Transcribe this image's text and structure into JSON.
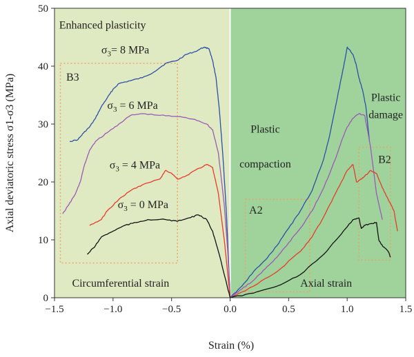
{
  "chart_data": {
    "type": "line",
    "xlabel": "Strain (%)",
    "ylabel": "Axial deviatoric stress σ1-σ3 (MPa)",
    "xlim": [
      -1.5,
      1.5
    ],
    "ylim": [
      0,
      50
    ],
    "xticks": [
      "−1.5",
      "−1.0",
      "−0.5",
      "0.0",
      "0.5",
      "1.0",
      "1.5"
    ],
    "xtick_values": [
      -1.5,
      -1.0,
      -0.5,
      0.0,
      0.5,
      1.0,
      1.5
    ],
    "yticks": [
      "0",
      "10",
      "20",
      "30",
      "40",
      "50"
    ],
    "ytick_values": [
      0,
      10,
      20,
      30,
      40,
      50
    ],
    "grid": false,
    "regions": [
      {
        "x": [
          -1.5,
          0
        ],
        "color": "#dfe9c2"
      },
      {
        "x": [
          0,
          1.5
        ],
        "color": "#9fd39b"
      }
    ],
    "series": [
      {
        "name": "σ3 = 8 MPa",
        "color": "#2b4fa8",
        "circumferential": [
          [
            -1.37,
            27
          ],
          [
            -1.3,
            27.3
          ],
          [
            -1.25,
            28.5
          ],
          [
            -1.2,
            29.5
          ],
          [
            -1.15,
            31
          ],
          [
            -1.1,
            33
          ],
          [
            -1.05,
            34.5
          ],
          [
            -1.0,
            36
          ],
          [
            -0.95,
            37
          ],
          [
            -0.85,
            37.5
          ],
          [
            -0.75,
            38
          ],
          [
            -0.65,
            39
          ],
          [
            -0.55,
            40.5
          ],
          [
            -0.45,
            41
          ],
          [
            -0.38,
            42
          ],
          [
            -0.3,
            42.5
          ],
          [
            -0.22,
            43.3
          ],
          [
            -0.18,
            43
          ],
          [
            -0.15,
            41
          ],
          [
            -0.12,
            38
          ],
          [
            -0.09,
            32
          ],
          [
            -0.06,
            24
          ],
          [
            -0.03,
            14
          ],
          [
            0,
            0
          ]
        ],
        "axial": [
          [
            0,
            0
          ],
          [
            0.1,
            2
          ],
          [
            0.2,
            4.5
          ],
          [
            0.3,
            6.5
          ],
          [
            0.4,
            9
          ],
          [
            0.5,
            12
          ],
          [
            0.6,
            15
          ],
          [
            0.7,
            18.5
          ],
          [
            0.8,
            24
          ],
          [
            0.85,
            28
          ],
          [
            0.9,
            33
          ],
          [
            0.95,
            38
          ],
          [
            0.98,
            41
          ],
          [
            1.0,
            43.3
          ],
          [
            1.05,
            42
          ],
          [
            1.08,
            40
          ],
          [
            1.1,
            38
          ],
          [
            1.13,
            36
          ],
          [
            1.16,
            33
          ],
          [
            1.19,
            27
          ]
        ]
      },
      {
        "name": "σ3 = 6 MPa",
        "color": "#9b59b6",
        "circumferential": [
          [
            -1.43,
            14.5
          ],
          [
            -1.38,
            16
          ],
          [
            -1.32,
            18
          ],
          [
            -1.28,
            20
          ],
          [
            -1.25,
            22.5
          ],
          [
            -1.2,
            25.5
          ],
          [
            -1.15,
            27
          ],
          [
            -1.05,
            28.5
          ],
          [
            -0.95,
            30
          ],
          [
            -0.85,
            31.5
          ],
          [
            -0.75,
            31.8
          ],
          [
            -0.6,
            31.5
          ],
          [
            -0.45,
            31.3
          ],
          [
            -0.3,
            30.8
          ],
          [
            -0.2,
            30
          ],
          [
            -0.15,
            29
          ],
          [
            -0.1,
            25
          ],
          [
            -0.05,
            16
          ],
          [
            -0.02,
            8
          ],
          [
            0,
            0
          ]
        ],
        "axial": [
          [
            0,
            0
          ],
          [
            0.1,
            1.5
          ],
          [
            0.2,
            3
          ],
          [
            0.3,
            5
          ],
          [
            0.4,
            7
          ],
          [
            0.5,
            9.5
          ],
          [
            0.6,
            12
          ],
          [
            0.7,
            15
          ],
          [
            0.8,
            19
          ],
          [
            0.9,
            24
          ],
          [
            0.95,
            27
          ],
          [
            1.0,
            29.5
          ],
          [
            1.05,
            31
          ],
          [
            1.1,
            31.8
          ],
          [
            1.15,
            31.5
          ],
          [
            1.2,
            26
          ],
          [
            1.25,
            18
          ],
          [
            1.3,
            13.5
          ]
        ]
      },
      {
        "name": "σ3 = 4 MPa",
        "color": "#e83a2a",
        "circumferential": [
          [
            -1.2,
            12.5
          ],
          [
            -1.1,
            13.5
          ],
          [
            -1.05,
            15
          ],
          [
            -0.95,
            17
          ],
          [
            -0.85,
            18.5
          ],
          [
            -0.75,
            19.5
          ],
          [
            -0.6,
            20.5
          ],
          [
            -0.55,
            22
          ],
          [
            -0.5,
            21.5
          ],
          [
            -0.45,
            20.5
          ],
          [
            -0.38,
            21
          ],
          [
            -0.3,
            22
          ],
          [
            -0.2,
            23
          ],
          [
            -0.15,
            22.5
          ],
          [
            -0.1,
            18
          ],
          [
            -0.05,
            10
          ],
          [
            -0.02,
            4
          ],
          [
            0,
            0
          ]
        ],
        "axial": [
          [
            0,
            0
          ],
          [
            0.2,
            2
          ],
          [
            0.4,
            4.5
          ],
          [
            0.6,
            8
          ],
          [
            0.7,
            10.5
          ],
          [
            0.8,
            14
          ],
          [
            0.9,
            18
          ],
          [
            1.0,
            22
          ],
          [
            1.05,
            23
          ],
          [
            1.08,
            20
          ],
          [
            1.12,
            20.5
          ],
          [
            1.15,
            21
          ],
          [
            1.2,
            22
          ],
          [
            1.25,
            21.5
          ],
          [
            1.3,
            19
          ],
          [
            1.35,
            17
          ],
          [
            1.4,
            15
          ],
          [
            1.43,
            11.5
          ]
        ]
      },
      {
        "name": "σ3 = 0 MPa",
        "color": "#111111",
        "circumferential": [
          [
            -1.22,
            7.5
          ],
          [
            -1.15,
            9
          ],
          [
            -1.1,
            10.5
          ],
          [
            -1.0,
            11.5
          ],
          [
            -0.9,
            12.5
          ],
          [
            -0.8,
            13
          ],
          [
            -0.7,
            13.5
          ],
          [
            -0.55,
            13.5
          ],
          [
            -0.45,
            13.2
          ],
          [
            -0.35,
            13.8
          ],
          [
            -0.27,
            14.3
          ],
          [
            -0.2,
            13.5
          ],
          [
            -0.15,
            11.5
          ],
          [
            -0.1,
            8
          ],
          [
            -0.05,
            4
          ],
          [
            0,
            0
          ]
        ],
        "axial": [
          [
            0,
            0
          ],
          [
            0.2,
            0.8
          ],
          [
            0.4,
            2
          ],
          [
            0.6,
            4
          ],
          [
            0.8,
            7.5
          ],
          [
            0.95,
            11
          ],
          [
            1.05,
            13.5
          ],
          [
            1.1,
            13.8
          ],
          [
            1.12,
            12
          ],
          [
            1.15,
            12.5
          ],
          [
            1.2,
            12.8
          ],
          [
            1.25,
            13
          ],
          [
            1.27,
            10
          ],
          [
            1.3,
            9
          ],
          [
            1.35,
            8
          ],
          [
            1.37,
            7
          ]
        ]
      }
    ],
    "annotations": [
      {
        "text": "Enhanced plasticity",
        "x": -1.46,
        "y": 46.5,
        "anchor": "start"
      },
      {
        "text": "σ3= 8 MPa",
        "x": -1.1,
        "y": 42.2,
        "anchor": "start",
        "sub": true
      },
      {
        "text": "B3",
        "x": -1.4,
        "y": 37.5,
        "anchor": "start"
      },
      {
        "text": "σ3 = 6 MPa",
        "x": -1.05,
        "y": 32.6,
        "anchor": "start",
        "sub": true
      },
      {
        "text": "σ3 = 4 MPa",
        "x": -1.03,
        "y": 22.3,
        "anchor": "start",
        "sub": true
      },
      {
        "text": "σ3 = 0 MPa",
        "x": -0.96,
        "y": 15.5,
        "anchor": "start",
        "sub": true
      },
      {
        "text": "Circumferential strain",
        "x": -1.35,
        "y": 1.9,
        "anchor": "start"
      },
      {
        "text": "Plastic",
        "x": 0.3,
        "y": 28.5,
        "anchor": "middle"
      },
      {
        "text": "compaction",
        "x": 0.3,
        "y": 22.5,
        "anchor": "middle"
      },
      {
        "text": "A2",
        "x": 0.22,
        "y": 14.5,
        "anchor": "middle"
      },
      {
        "text": "Axial strain",
        "x": 0.82,
        "y": 1.9,
        "anchor": "middle"
      },
      {
        "text": "Plastic",
        "x": 1.33,
        "y": 34,
        "anchor": "middle"
      },
      {
        "text": "damage",
        "x": 1.33,
        "y": 31,
        "anchor": "middle"
      },
      {
        "text": "B2",
        "x": 1.32,
        "y": 23.3,
        "anchor": "middle"
      }
    ],
    "boxes": [
      {
        "name": "B3",
        "x": [
          -1.45,
          -0.45
        ],
        "y": [
          6,
          40.5
        ]
      },
      {
        "name": "A2",
        "x": [
          0.13,
          0.68
        ],
        "y": [
          1,
          17
        ]
      },
      {
        "name": "B2",
        "x": [
          1.1,
          1.37
        ],
        "y": [
          6.5,
          26
        ]
      }
    ]
  }
}
